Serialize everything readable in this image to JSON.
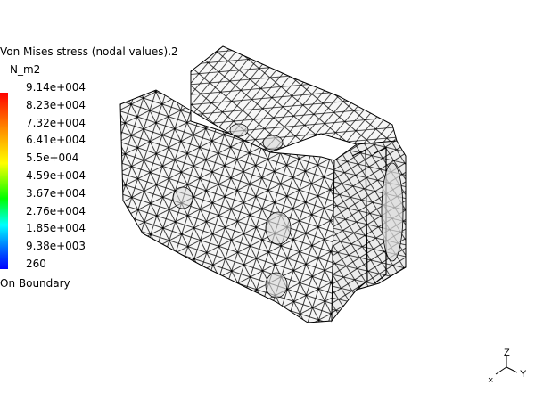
{
  "legend": {
    "title": "Von Mises stress (nodal values).2",
    "unit": "N_m2",
    "ticks": [
      "9.14e+004",
      "8.23e+004",
      "7.32e+004",
      "6.41e+004",
      "5.5e+004",
      "4.59e+004",
      "3.67e+004",
      "2.76e+004",
      "1.85e+004",
      "9.38e+003",
      "260"
    ],
    "footer": "On Boundary"
  },
  "axes": {
    "z": "Z",
    "y": "Y"
  },
  "colors": {
    "mesh_line": "#000000",
    "mesh_fill": "#f4f4f4",
    "background": "#ffffff"
  }
}
